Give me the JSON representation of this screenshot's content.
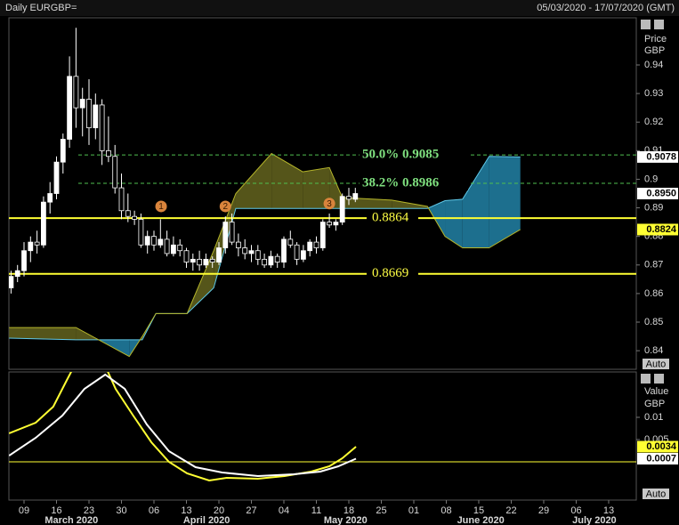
{
  "chart_data": [
    {
      "type": "candlestick",
      "title": "Daily EURGBP=",
      "subtitle": "05/03/2020 - 17/07/2020 (GMT)",
      "y_label": [
        "Price",
        "GBP"
      ],
      "button": "Auto",
      "xlim": [
        -2.33,
        94.25
      ],
      "ylim": [
        0.8335,
        0.9565
      ],
      "yticks": [
        0.84,
        0.85,
        0.86,
        0.87,
        0.88,
        0.89,
        0.9,
        0.91,
        0.92,
        0.93,
        0.94
      ],
      "colors": {
        "up": "#ffffff",
        "down": "#000000",
        "wick": "#ffffff"
      },
      "x": [
        -2,
        -1,
        0,
        1,
        2,
        3,
        4,
        5,
        6,
        7,
        8,
        9,
        10,
        11,
        12,
        13,
        14,
        15,
        16,
        17,
        18,
        19,
        20,
        21,
        22,
        23,
        24,
        25,
        26,
        27,
        28,
        29,
        30,
        31,
        32,
        33,
        34,
        35,
        36,
        37,
        38,
        39,
        40,
        41,
        42,
        43,
        44,
        45,
        46,
        47,
        48,
        49,
        50,
        51
      ],
      "open": [
        0.862,
        0.866,
        0.868,
        0.875,
        0.878,
        0.877,
        0.892,
        0.895,
        0.906,
        0.914,
        0.936,
        0.925,
        0.928,
        0.918,
        0.926,
        0.91,
        0.908,
        0.897,
        0.889,
        0.887,
        0.886,
        0.877,
        0.88,
        0.877,
        0.879,
        0.874,
        0.877,
        0.875,
        0.871,
        0.872,
        0.87,
        0.872,
        0.871,
        0.876,
        0.885,
        0.878,
        0.876,
        0.874,
        0.875,
        0.872,
        0.87,
        0.873,
        0.871,
        0.879,
        0.877,
        0.872,
        0.875,
        0.878,
        0.876,
        0.885,
        0.884,
        0.885,
        0.894,
        0.893
      ],
      "high": [
        0.868,
        0.87,
        0.878,
        0.88,
        0.882,
        0.894,
        0.899,
        0.908,
        0.916,
        0.943,
        0.953,
        0.932,
        0.935,
        0.93,
        0.928,
        0.922,
        0.912,
        0.902,
        0.895,
        0.889,
        0.888,
        0.882,
        0.882,
        0.886,
        0.882,
        0.88,
        0.879,
        0.876,
        0.874,
        0.875,
        0.874,
        0.873,
        0.878,
        0.887,
        0.888,
        0.881,
        0.879,
        0.877,
        0.877,
        0.874,
        0.875,
        0.874,
        0.88,
        0.882,
        0.878,
        0.877,
        0.879,
        0.88,
        0.886,
        0.888,
        0.886,
        0.895,
        0.897,
        0.897
      ],
      "low": [
        0.86,
        0.864,
        0.866,
        0.871,
        0.874,
        0.876,
        0.888,
        0.893,
        0.902,
        0.911,
        0.918,
        0.915,
        0.912,
        0.914,
        0.905,
        0.906,
        0.895,
        0.886,
        0.885,
        0.884,
        0.876,
        0.874,
        0.875,
        0.876,
        0.873,
        0.873,
        0.873,
        0.869,
        0.868,
        0.868,
        0.869,
        0.869,
        0.87,
        0.874,
        0.877,
        0.873,
        0.872,
        0.871,
        0.87,
        0.869,
        0.869,
        0.869,
        0.869,
        0.876,
        0.87,
        0.871,
        0.873,
        0.874,
        0.875,
        0.883,
        0.882,
        0.884,
        0.891,
        0.892
      ],
      "close": [
        0.866,
        0.868,
        0.875,
        0.878,
        0.877,
        0.892,
        0.895,
        0.906,
        0.914,
        0.936,
        0.925,
        0.928,
        0.918,
        0.926,
        0.91,
        0.908,
        0.897,
        0.889,
        0.887,
        0.886,
        0.877,
        0.88,
        0.877,
        0.879,
        0.874,
        0.877,
        0.875,
        0.871,
        0.872,
        0.87,
        0.872,
        0.871,
        0.876,
        0.885,
        0.878,
        0.876,
        0.874,
        0.875,
        0.872,
        0.87,
        0.873,
        0.871,
        0.879,
        0.877,
        0.872,
        0.875,
        0.878,
        0.876,
        0.885,
        0.884,
        0.885,
        0.894,
        0.893,
        0.895
      ],
      "cloud": {
        "x": [
          -2.3,
          8.0,
          16.2,
          18.2,
          20.3,
          25.1,
          29.2,
          32.6,
          38.1,
          42.9,
          47.0,
          49.0,
          56.6,
          62.1,
          64.8,
          67.5,
          71.6,
          76.4
        ],
        "span_a": [
          0.8444,
          0.8438,
          0.8438,
          0.8438,
          0.853,
          0.853,
          0.862,
          0.8898,
          0.8898,
          0.8898,
          0.8898,
          0.8898,
          0.8898,
          0.8898,
          0.8925,
          0.893,
          0.908,
          0.9078
        ],
        "span_b": [
          0.8481,
          0.8481,
          0.838,
          0.845,
          0.853,
          0.853,
          0.875,
          0.895,
          0.909,
          0.9026,
          0.9041,
          0.8936,
          0.8927,
          0.8905,
          0.88,
          0.876,
          0.876,
          0.8824
        ],
        "colors": {
          "a_line": "#5fc8e8",
          "b_line": "#b5b52a",
          "a_fill": "#1d6f8e",
          "b_fill": "#55551a"
        }
      },
      "fib_levels": [
        {
          "value": 0.9085,
          "label": "50.0% 0.9085",
          "color": "#4fbf4f"
        },
        {
          "value": 0.8986,
          "label": "38.2% 0.8986",
          "color": "#4fbf4f"
        }
      ],
      "levels": [
        {
          "value": 0.8864,
          "color": "#ffff33"
        },
        {
          "value": 0.8669,
          "color": "#ffff33"
        }
      ],
      "price_markers": [
        {
          "value": 0.9078,
          "label": "0.9078",
          "color": "#ffffff"
        },
        {
          "value": 0.895,
          "label": "0.8950",
          "color": "#ffffff"
        },
        {
          "value": 0.8824,
          "label": "0.8824",
          "color": "#ffff33"
        }
      ],
      "markers": [
        {
          "label": "1",
          "x": 21.1,
          "y": 0.8905
        },
        {
          "label": "2",
          "x": 31.0,
          "y": 0.8905
        },
        {
          "label": "3",
          "x": 47.0,
          "y": 0.8915
        }
      ]
    },
    {
      "type": "line",
      "y_label": [
        "Value",
        "GBP"
      ],
      "button": "Auto",
      "xlim": [
        -2.33,
        94.25
      ],
      "ylim": [
        -0.0086,
        0.0202
      ],
      "yticks": [
        0.005,
        0.01
      ],
      "xticks": [
        {
          "value": 0,
          "label": "09"
        },
        {
          "value": 5,
          "label": "16"
        },
        {
          "value": 10,
          "label": "23"
        },
        {
          "value": 15,
          "label": "30"
        },
        {
          "value": 20,
          "label": "06"
        },
        {
          "value": 25,
          "label": "13"
        },
        {
          "value": 30,
          "label": "20"
        },
        {
          "value": 35,
          "label": "27"
        },
        {
          "value": 40,
          "label": "04"
        },
        {
          "value": 45,
          "label": "11"
        },
        {
          "value": 50,
          "label": "18"
        },
        {
          "value": 55,
          "label": "25"
        },
        {
          "value": 60,
          "label": "01"
        },
        {
          "value": 65,
          "label": "08"
        },
        {
          "value": 70,
          "label": "15"
        },
        {
          "value": 75,
          "label": "22"
        },
        {
          "value": 80,
          "label": "29"
        },
        {
          "value": 85,
          "label": "06"
        },
        {
          "value": 90,
          "label": "13"
        }
      ],
      "months": [
        {
          "value": 7.3,
          "label": "March 2020"
        },
        {
          "value": 28.1,
          "label": "April 2020"
        },
        {
          "value": 49.5,
          "label": "May 2020"
        },
        {
          "value": 70.3,
          "label": "June 2020"
        },
        {
          "value": 87.8,
          "label": "July 2020"
        }
      ],
      "levels": [
        {
          "value": 0,
          "color": "#ffff33"
        }
      ],
      "series": [
        {
          "color": "#ffff33",
          "x": [
            -2.3,
            1.8,
            4.5,
            6.6,
            8.4,
            12.1,
            14.1,
            16.8,
            19.6,
            22.3,
            25.1,
            28.5,
            31.2,
            36.0,
            40.1,
            44.2,
            47.0,
            49.0,
            51.1
          ],
          "values": [
            0.0064,
            0.0088,
            0.0124,
            0.0184,
            0.0234,
            0.0228,
            0.0164,
            0.0104,
            0.0044,
            0.0,
            -0.0026,
            -0.0042,
            -0.0036,
            -0.0038,
            -0.0032,
            -0.0022,
            -0.001,
            0.0008,
            0.0034
          ]
        },
        {
          "color": "#ffffff",
          "x": [
            -2.3,
            1.8,
            5.9,
            9.3,
            12.5,
            15.5,
            18.9,
            22.3,
            26.4,
            30.5,
            36.0,
            41.5,
            45.6,
            48.4,
            51.1
          ],
          "values": [
            0.0014,
            0.0054,
            0.0104,
            0.0164,
            0.0196,
            0.0164,
            0.0084,
            0.0024,
            -0.0012,
            -0.0024,
            -0.0032,
            -0.0028,
            -0.0022,
            -0.001,
            0.0007
          ]
        }
      ],
      "price_markers": [
        {
          "value": 0.0034,
          "label": "0.0034",
          "color": "#ffff33"
        },
        {
          "value": 0.0007,
          "label": "0.0007",
          "color": "#ffffff"
        }
      ]
    }
  ]
}
